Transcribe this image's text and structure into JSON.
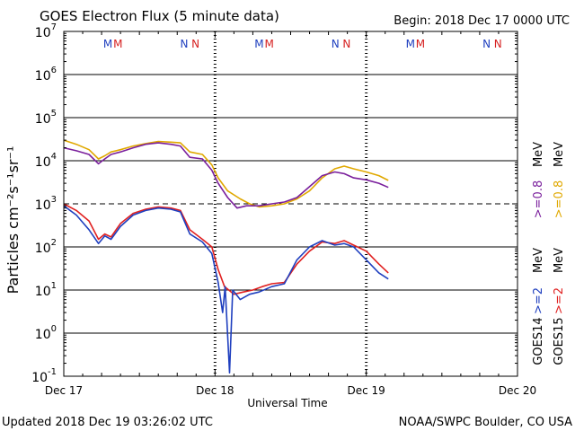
{
  "chart_data": {
    "type": "line",
    "title": "GOES Electron Flux (5 minute data)",
    "begin_label": "Begin: 2018 Dec 17 0000 UTC",
    "xlabel": "Universal Time",
    "ylabel": "Particles cm⁻²s⁻¹sr⁻¹",
    "y_scale": "log",
    "ylim": [
      0.1,
      10000000
    ],
    "y_ticks": [
      {
        "value": 0.1,
        "base": "10",
        "exp": "-1"
      },
      {
        "value": 1,
        "base": "10",
        "exp": "0"
      },
      {
        "value": 10,
        "base": "10",
        "exp": "1"
      },
      {
        "value": 100,
        "base": "10",
        "exp": "2"
      },
      {
        "value": 1000,
        "base": "10",
        "exp": "3"
      },
      {
        "value": 10000,
        "base": "10",
        "exp": "4"
      },
      {
        "value": 100000,
        "base": "10",
        "exp": "5"
      },
      {
        "value": 1000000,
        "base": "10",
        "exp": "6"
      },
      {
        "value": 10000000,
        "base": "10",
        "exp": "7"
      }
    ],
    "xlim_hours": [
      0,
      72
    ],
    "x_ticks": [
      {
        "hour": 0,
        "label": "Dec 17"
      },
      {
        "hour": 24,
        "label": "Dec 18"
      },
      {
        "hour": 48,
        "label": "Dec 19"
      },
      {
        "hour": 72,
        "label": "Dec 20"
      }
    ],
    "alert_threshold": 1000,
    "day_markers": [
      {
        "hour": 7.0,
        "text": "M",
        "color": "#1f3fbf"
      },
      {
        "hour": 8.6,
        "text": "M",
        "color": "#d62020"
      },
      {
        "hour": 19.1,
        "text": "N",
        "color": "#1f3fbf"
      },
      {
        "hour": 20.9,
        "text": "N",
        "color": "#d62020"
      },
      {
        "hour": 31.0,
        "text": "M",
        "color": "#1f3fbf"
      },
      {
        "hour": 32.6,
        "text": "M",
        "color": "#d62020"
      },
      {
        "hour": 43.1,
        "text": "N",
        "color": "#1f3fbf"
      },
      {
        "hour": 44.9,
        "text": "N",
        "color": "#d62020"
      },
      {
        "hour": 55.0,
        "text": "M",
        "color": "#1f3fbf"
      },
      {
        "hour": 56.6,
        "text": "M",
        "color": "#d62020"
      },
      {
        "hour": 67.1,
        "text": "N",
        "color": "#1f3fbf"
      },
      {
        "hour": 68.9,
        "text": "N",
        "color": "#d62020"
      }
    ],
    "series": [
      {
        "name": "GOES15 >=0.8 MeV",
        "color": "#e0a800",
        "points": [
          [
            0,
            30000
          ],
          [
            2,
            24000
          ],
          [
            4,
            18000
          ],
          [
            5.5,
            11000
          ],
          [
            6.5,
            13000
          ],
          [
            7.5,
            16000
          ],
          [
            9,
            18000
          ],
          [
            11,
            22000
          ],
          [
            13,
            25000
          ],
          [
            15,
            28000
          ],
          [
            17,
            27000
          ],
          [
            18.5,
            26000
          ],
          [
            20,
            16000
          ],
          [
            22,
            14000
          ],
          [
            23.5,
            8000
          ],
          [
            24.5,
            4000
          ],
          [
            26,
            2000
          ],
          [
            28,
            1300
          ],
          [
            29.5,
            1000
          ],
          [
            31,
            850
          ],
          [
            33,
            900
          ],
          [
            35,
            1000
          ],
          [
            37,
            1300
          ],
          [
            39,
            2000
          ],
          [
            41,
            4000
          ],
          [
            43,
            6500
          ],
          [
            44.5,
            7500
          ],
          [
            46,
            6500
          ],
          [
            48,
            5500
          ],
          [
            50,
            4500
          ],
          [
            51.5,
            3500
          ]
        ]
      },
      {
        "name": "GOES14 >=0.8 MeV",
        "color": "#7a1f9c",
        "points": [
          [
            0,
            20000
          ],
          [
            2,
            17000
          ],
          [
            4,
            14000
          ],
          [
            5.5,
            8500
          ],
          [
            6.5,
            11000
          ],
          [
            7.5,
            14000
          ],
          [
            9,
            16000
          ],
          [
            11,
            20000
          ],
          [
            13,
            24000
          ],
          [
            15,
            26000
          ],
          [
            17,
            24000
          ],
          [
            18.5,
            22000
          ],
          [
            20,
            12000
          ],
          [
            22,
            11000
          ],
          [
            23.5,
            6000
          ],
          [
            24.5,
            3000
          ],
          [
            26,
            1400
          ],
          [
            27.5,
            800
          ],
          [
            29,
            900
          ],
          [
            31,
            900
          ],
          [
            33,
            1000
          ],
          [
            35,
            1100
          ],
          [
            37,
            1400
          ],
          [
            39,
            2500
          ],
          [
            41,
            4500
          ],
          [
            43,
            5500
          ],
          [
            44.5,
            5000
          ],
          [
            46,
            4000
          ],
          [
            48,
            3600
          ],
          [
            50,
            3000
          ],
          [
            51.5,
            2400
          ]
        ]
      },
      {
        "name": "GOES15 >=2 MeV",
        "color": "#e02020",
        "points": [
          [
            0,
            1000
          ],
          [
            2,
            700
          ],
          [
            4,
            400
          ],
          [
            5.5,
            150
          ],
          [
            6.5,
            200
          ],
          [
            7.5,
            170
          ],
          [
            9,
            350
          ],
          [
            11,
            600
          ],
          [
            13,
            750
          ],
          [
            15,
            850
          ],
          [
            17,
            800
          ],
          [
            18.5,
            700
          ],
          [
            20,
            250
          ],
          [
            22,
            150
          ],
          [
            23.5,
            100
          ],
          [
            24.5,
            30
          ],
          [
            25.5,
            12
          ],
          [
            27,
            8
          ],
          [
            28.5,
            9
          ],
          [
            30,
            10
          ],
          [
            31.5,
            12
          ],
          [
            33,
            14
          ],
          [
            35,
            15
          ],
          [
            37,
            40
          ],
          [
            39,
            80
          ],
          [
            41,
            130
          ],
          [
            43,
            120
          ],
          [
            44.5,
            140
          ],
          [
            46,
            110
          ],
          [
            48,
            80
          ],
          [
            50,
            40
          ],
          [
            51.5,
            25
          ]
        ]
      },
      {
        "name": "GOES14 >=2 MeV",
        "color": "#1f3fbf",
        "points": [
          [
            0,
            900
          ],
          [
            2,
            550
          ],
          [
            4,
            250
          ],
          [
            5.5,
            120
          ],
          [
            6.5,
            180
          ],
          [
            7.5,
            150
          ],
          [
            9,
            300
          ],
          [
            11,
            550
          ],
          [
            13,
            700
          ],
          [
            15,
            800
          ],
          [
            17,
            750
          ],
          [
            18.5,
            650
          ],
          [
            20,
            200
          ],
          [
            22,
            130
          ],
          [
            23.5,
            70
          ],
          [
            24.5,
            15
          ],
          [
            25.2,
            3
          ],
          [
            25.6,
            12
          ],
          [
            26.3,
            0.12
          ],
          [
            26.8,
            10
          ],
          [
            28,
            6
          ],
          [
            29.5,
            8
          ],
          [
            31,
            9
          ],
          [
            33,
            12
          ],
          [
            35,
            14
          ],
          [
            37,
            50
          ],
          [
            39,
            100
          ],
          [
            41,
            140
          ],
          [
            43,
            110
          ],
          [
            44.5,
            120
          ],
          [
            46,
            100
          ],
          [
            48,
            50
          ],
          [
            50,
            25
          ],
          [
            51.5,
            18
          ]
        ]
      }
    ],
    "legend": [
      {
        "label": "GOES14",
        "text": ">=2",
        "unit": "MeV",
        "color": "#1f3fbf",
        "row": 0,
        "col": 0
      },
      {
        "label": "GOES14",
        "text": ">=0.8",
        "unit": "MeV",
        "color": "#7a1f9c",
        "row": 1,
        "col": 0
      },
      {
        "label": "GOES15",
        "text": ">=2",
        "unit": "MeV",
        "color": "#e02020",
        "row": 0,
        "col": 1
      },
      {
        "label": "GOES15",
        "text": ">=0.8",
        "unit": "MeV",
        "color": "#e0a800",
        "row": 1,
        "col": 1
      }
    ],
    "legend_static": {
      "goes14": "GOES14",
      "goes15": "GOES15",
      "mev": "MeV"
    }
  },
  "footer": {
    "updated": "Updated 2018 Dec 19 03:26:02 UTC",
    "credit": "NOAA/SWPC Boulder, CO USA"
  }
}
